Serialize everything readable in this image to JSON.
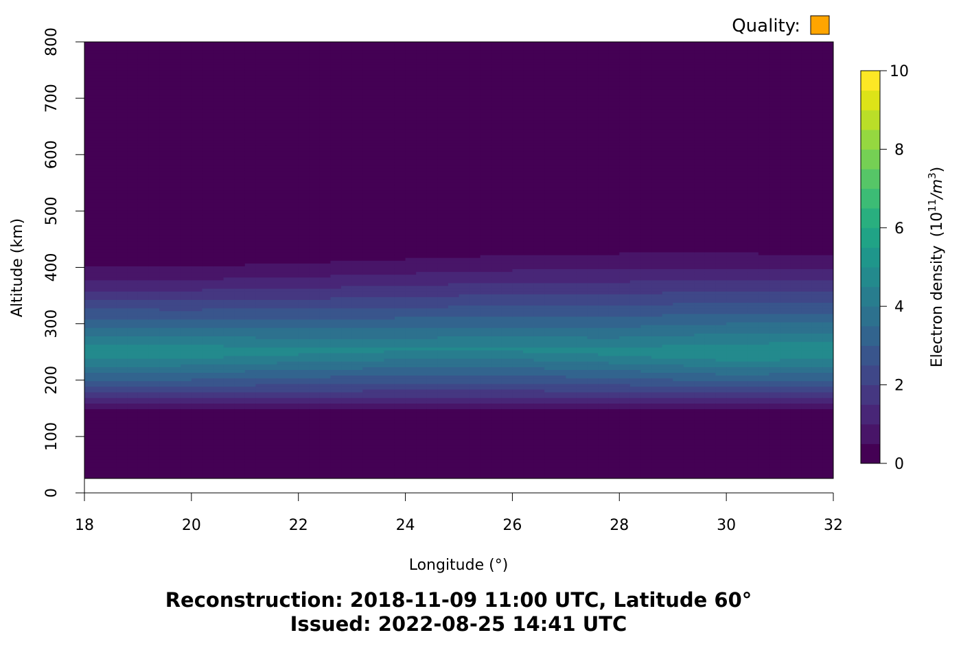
{
  "chart_data": {
    "type": "heatmap",
    "quality": {
      "label": "Quality:",
      "color": "#FFA500"
    },
    "title": "Reconstruction: 2018-11-09 11:00 UTC, Latitude 60°",
    "subtitle": "Issued: 2022-08-25 14:41 UTC",
    "xlabel": "Longitude (°)",
    "ylabel": "Altitude (km)",
    "xlim": [
      18,
      32
    ],
    "ylim": [
      0,
      800
    ],
    "x_ticks": [
      "18",
      "20",
      "22",
      "24",
      "26",
      "28",
      "30",
      "32"
    ],
    "y_ticks": [
      "0",
      "100",
      "200",
      "300",
      "400",
      "500",
      "600",
      "700",
      "800"
    ],
    "data_altitude_range": [
      25,
      800
    ],
    "colorbar": {
      "label_main": "Electron density",
      "label_unit_base": "(10",
      "label_unit_exp": "11",
      "label_unit_div": "/m",
      "label_unit_exp2": "3",
      "label_unit_close": ")",
      "range": [
        0,
        10
      ],
      "ticks": [
        "0",
        "2",
        "4",
        "6",
        "8",
        "10"
      ],
      "levels": 20,
      "colors": [
        "#440154",
        "#481568",
        "#482677",
        "#453781",
        "#3F4788",
        "#39558C",
        "#32648E",
        "#2D718E",
        "#287D8E",
        "#238A8D",
        "#1F968B",
        "#20A386",
        "#29AF7F",
        "#3CBC75",
        "#56C667",
        "#75D054",
        "#95D840",
        "#BADE28",
        "#DDE318",
        "#FDE725"
      ]
    },
    "profile": {
      "altitudes_km": [
        25,
        150,
        160,
        175,
        190,
        200,
        210,
        225,
        240,
        250,
        260,
        280,
        300,
        320,
        335,
        345,
        360,
        380,
        400,
        430,
        460,
        500,
        600,
        700,
        800
      ],
      "longitudes_deg": [
        18,
        20,
        22,
        24,
        26,
        28,
        30,
        32
      ],
      "peak_density": [
        5.0,
        4.9,
        4.7,
        4.6,
        4.6,
        4.7,
        5.0,
        5.0
      ],
      "peak_altitude_km": [
        250,
        250,
        252,
        255,
        255,
        250,
        248,
        250
      ],
      "band_top_altitude_km": [
        400,
        402,
        408,
        415,
        422,
        425,
        426,
        422
      ]
    }
  }
}
